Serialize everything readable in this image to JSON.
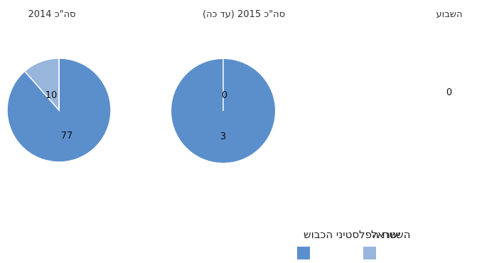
{
  "chart_data": [
    {
      "type": "pie",
      "title": "סה\"כ 2014",
      "categories": [
        "השטח הפלסטיני הכבוש",
        "ישראל"
      ],
      "values": [
        77,
        10
      ]
    },
    {
      "type": "pie",
      "title": "סה\"כ 2015 (עד כה)",
      "categories": [
        "השטח הפלסטיני הכבוש",
        "ישראל"
      ],
      "values": [
        3,
        0
      ]
    },
    {
      "type": "pie",
      "title": "השבוע",
      "categories": [
        "השטח הפלסטיני הכבוש",
        "ישראל"
      ],
      "values": [
        0,
        0
      ],
      "value_label": "0"
    }
  ],
  "legend": [
    {
      "label": "השטח הפלסטיני הכבוש",
      "color": "#5b8fcc"
    },
    {
      "label": "ישראל",
      "color": "#98b5dc"
    }
  ],
  "colors": {
    "opt": "#5b8fcc",
    "israel": "#98b5dc",
    "divider": "#ffffff"
  }
}
